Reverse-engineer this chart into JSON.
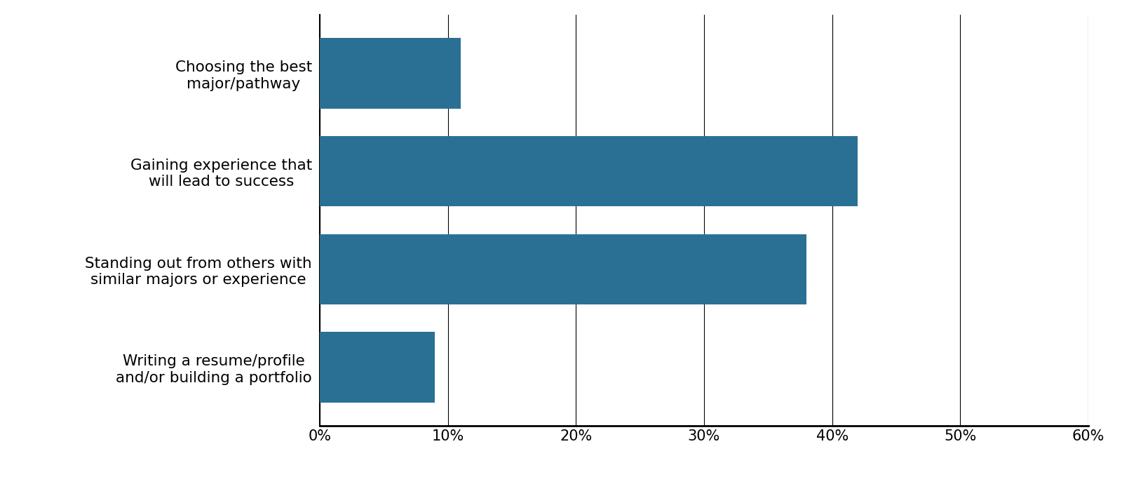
{
  "categories": [
    "Writing a resume/profile\nand/or building a portfolio",
    "Standing out from others with\nsimilar majors or experience",
    "Gaining experience that\nwill lead to success",
    "Choosing the best\nmajor/pathway"
  ],
  "values": [
    9,
    38,
    42,
    11
  ],
  "bar_color": "#2a7095",
  "background_color": "#ffffff",
  "xlim": [
    0,
    0.6
  ],
  "xticks": [
    0,
    0.1,
    0.2,
    0.3,
    0.4,
    0.5,
    0.6
  ],
  "xtick_labels": [
    "0%",
    "10%",
    "20%",
    "30%",
    "40%",
    "50%",
    "60%"
  ],
  "bar_height": 0.72,
  "label_fontsize": 15.5,
  "tick_fontsize": 15
}
